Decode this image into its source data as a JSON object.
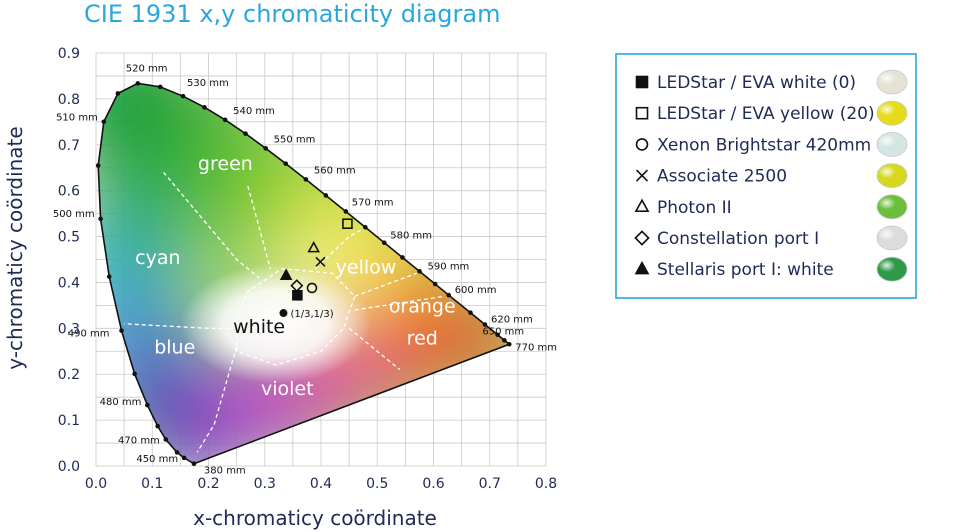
{
  "chart_data": {
    "type": "scatter",
    "title": "CIE 1931 x,y chromaticity diagram",
    "xlabel": "x-chromaticy coördinate",
    "ylabel": "y-chromaticy coördinate",
    "xlim": [
      0.0,
      0.8
    ],
    "ylim": [
      0.0,
      0.9
    ],
    "xticks": [
      "0.0",
      "0.1",
      "0.2",
      "0.3",
      "0.4",
      "0.5",
      "0.6",
      "0.7",
      "0.8"
    ],
    "yticks": [
      "0.0",
      "0.1",
      "0.2",
      "0.3",
      "0.4",
      "0.5",
      "0.6",
      "0.7",
      "0.8",
      "0.9"
    ],
    "grid": true,
    "legend_position": "right",
    "spectral_locus": [
      {
        "label": "380 mm",
        "x": 0.1741,
        "y": 0.005
      },
      {
        "label": "450 mm",
        "x": 0.1566,
        "y": 0.0177
      },
      {
        "label": "470 mm",
        "x": 0.1241,
        "y": 0.0578
      },
      {
        "label": "480 mm",
        "x": 0.0913,
        "y": 0.1327
      },
      {
        "label": "490 mm",
        "x": 0.0454,
        "y": 0.295
      },
      {
        "label": "500 mm",
        "x": 0.0082,
        "y": 0.5384
      },
      {
        "label": "510 mm",
        "x": 0.0139,
        "y": 0.7502
      },
      {
        "label": "520 mm",
        "x": 0.0743,
        "y": 0.8338
      },
      {
        "label": "530 mm",
        "x": 0.1547,
        "y": 0.8059
      },
      {
        "label": "540 mm",
        "x": 0.2296,
        "y": 0.7543
      },
      {
        "label": "550 mm",
        "x": 0.3016,
        "y": 0.6923
      },
      {
        "label": "560 mm",
        "x": 0.3731,
        "y": 0.6245
      },
      {
        "label": "570 mm",
        "x": 0.4441,
        "y": 0.5547
      },
      {
        "label": "580 mm",
        "x": 0.5125,
        "y": 0.4866
      },
      {
        "label": "590 mm",
        "x": 0.5752,
        "y": 0.4242
      },
      {
        "label": "600 mm",
        "x": 0.627,
        "y": 0.3725
      },
      {
        "label": "620 mm",
        "x": 0.6915,
        "y": 0.3083
      },
      {
        "label": "650 mm",
        "x": 0.726,
        "y": 0.274
      },
      {
        "label": "770 mm",
        "x": 0.7347,
        "y": 0.2653
      }
    ],
    "regions": [
      "green",
      "cyan",
      "yellow",
      "orange",
      "white",
      "blue",
      "red",
      "violet"
    ],
    "white_point": {
      "label": "(1/3,1/3)",
      "x": 0.3333,
      "y": 0.3333
    },
    "series": [
      {
        "name": "LEDStar / EVA white (0)",
        "marker": "square-filled",
        "x": 0.358,
        "y": 0.372,
        "swatch": "#e6e3d6"
      },
      {
        "name": "LEDStar / EVA yellow (20)",
        "marker": "square-open",
        "x": 0.447,
        "y": 0.528,
        "swatch": "#e4dc1a"
      },
      {
        "name": "Xenon Brightstar 420mm",
        "marker": "circle-open",
        "x": 0.384,
        "y": 0.388,
        "swatch": "#d4e6e4"
      },
      {
        "name": "Associate 2500",
        "marker": "cross",
        "x": 0.399,
        "y": 0.445,
        "swatch": "#d6d81e"
      },
      {
        "name": "Photon II",
        "marker": "triangle-open",
        "x": 0.387,
        "y": 0.475,
        "swatch": "#6cbf3c"
      },
      {
        "name": "Constellation port I",
        "marker": "diamond-open",
        "x": 0.357,
        "y": 0.393,
        "swatch": "#dcdcdc"
      },
      {
        "name": "Stellaris port I: white",
        "marker": "triangle-filled",
        "x": 0.338,
        "y": 0.415,
        "swatch": "#2e9a4a"
      }
    ]
  }
}
